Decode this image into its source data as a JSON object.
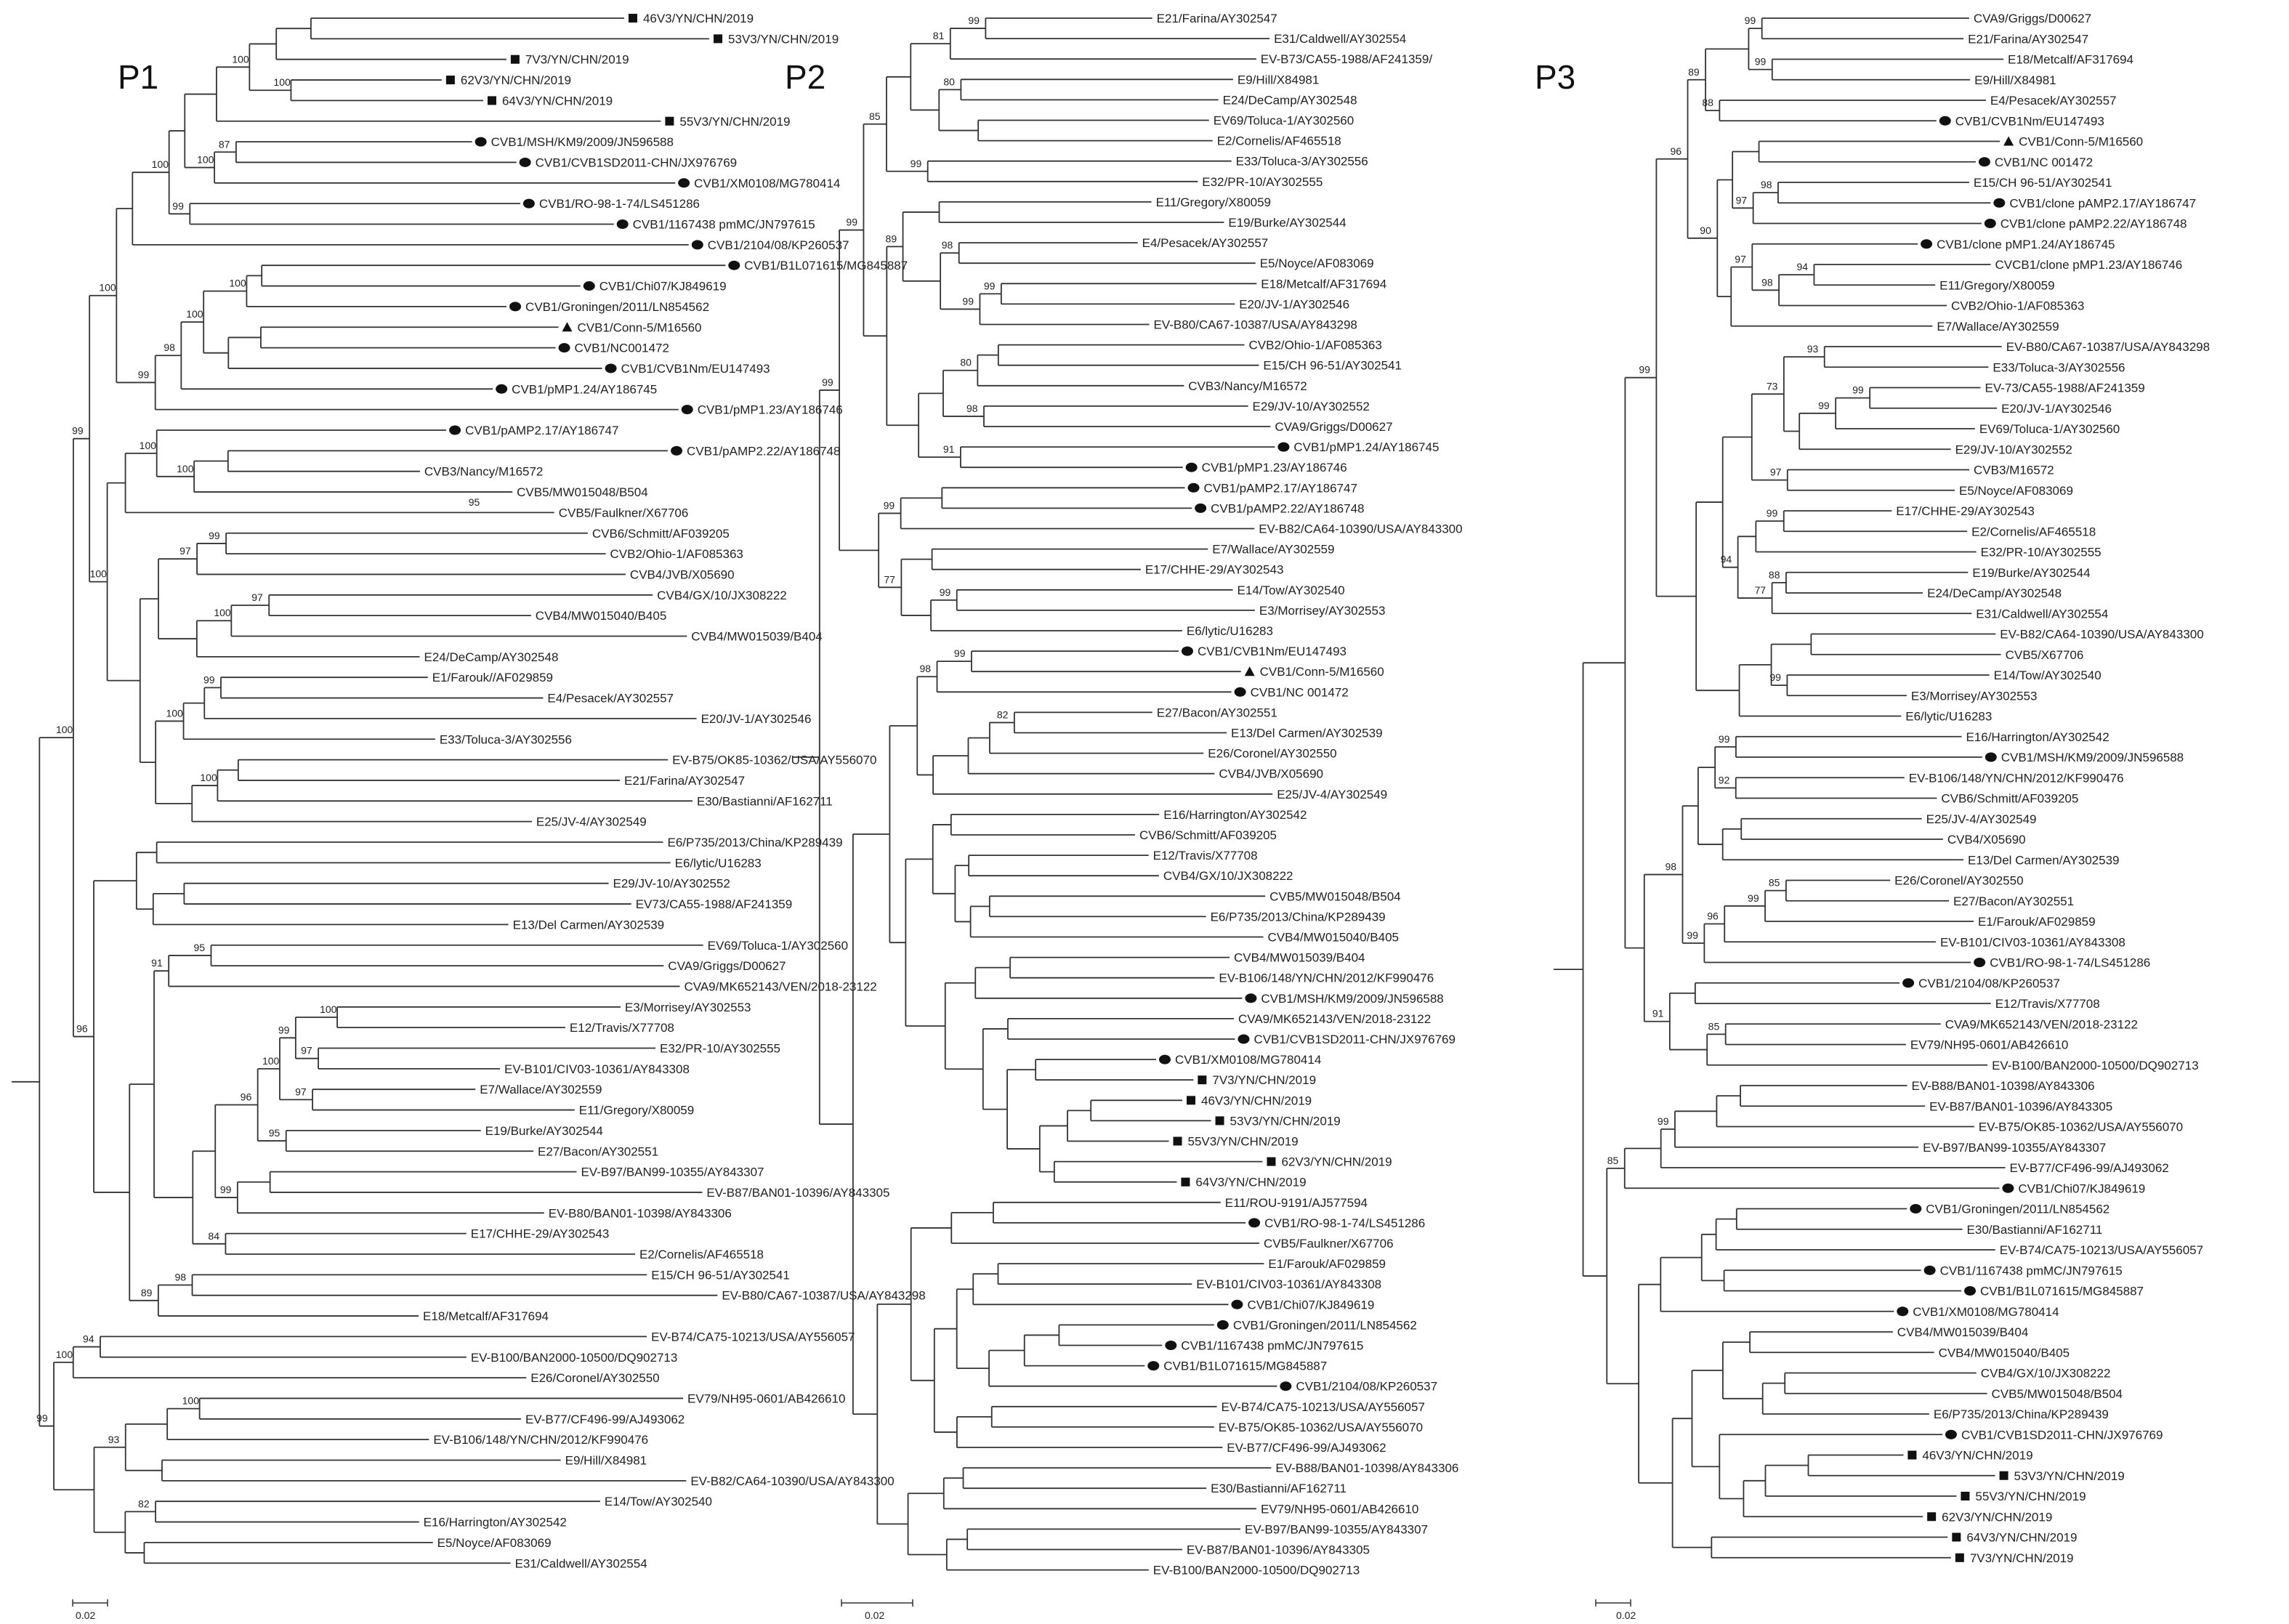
{
  "figure": {
    "marker_colors": {
      "line": "#333333",
      "marker": "#111111",
      "text": "#222222"
    }
  },
  "panels": [
    {
      "title": "P1",
      "scale_label": "0.02",
      "leaves": [
        {
          "label": "46V3/YN/CHN/2019",
          "marker": "square"
        },
        {
          "label": "53V3/YN/CHN/2019",
          "marker": "square"
        },
        {
          "label": "7V3/YN/CHN/2019",
          "marker": "square"
        },
        {
          "label": "62V3/YN/CHN/2019",
          "marker": "square"
        },
        {
          "label": "64V3/YN/CHN/2019",
          "marker": "square"
        },
        {
          "label": "55V3/YN/CHN/2019",
          "marker": "square"
        },
        {
          "label": "CVB1/MSH/KM9/2009/JN596588",
          "marker": "circle"
        },
        {
          "label": "CVB1/CVB1SD2011-CHN/JX976769",
          "marker": "circle"
        },
        {
          "label": "CVB1/XM0108/MG780414",
          "marker": "circle"
        },
        {
          "label": "CVB1/RO-98-1-74/LS451286",
          "marker": "circle"
        },
        {
          "label": "CVB1/1167438 pmMC/JN797615",
          "marker": "circle"
        },
        {
          "label": "CVB1/2104/08/KP260537",
          "marker": "circle"
        },
        {
          "label": "CVB1/B1L071615/MG845887",
          "marker": "circle"
        },
        {
          "label": "CVB1/Chi07/KJ849619",
          "marker": "circle"
        },
        {
          "label": "CVB1/Groningen/2011/LN854562",
          "marker": "circle"
        },
        {
          "label": "CVB1/Conn-5/M16560",
          "marker": "triangle"
        },
        {
          "label": "CVB1/NC001472",
          "marker": "circle"
        },
        {
          "label": "CVB1/CVB1Nm/EU147493",
          "marker": "circle"
        },
        {
          "label": "CVB1/pMP1.24/AY186745",
          "marker": "circle"
        },
        {
          "label": "CVB1/pMP1.23/AY186746",
          "marker": "circle"
        },
        {
          "label": "CVB1/pAMP2.17/AY186747",
          "marker": "circle"
        },
        {
          "label": "CVB1/pAMP2.22/AY186748",
          "marker": "circle"
        },
        {
          "label": "CVB3/Nancy/M16572"
        },
        {
          "label": "CVB5/MW015048/B504"
        },
        {
          "label": "CVB5/Faulkner/X67706"
        },
        {
          "label": "CVB6/Schmitt/AF039205"
        },
        {
          "label": "CVB2/Ohio-1/AF085363"
        },
        {
          "label": "CVB4/JVB/X05690"
        },
        {
          "label": "CVB4/GX/10/JX308222"
        },
        {
          "label": "CVB4/MW015040/B405"
        },
        {
          "label": "CVB4/MW015039/B404"
        },
        {
          "label": "E24/DeCamp/AY302548"
        },
        {
          "label": "E1/Farouk//AF029859"
        },
        {
          "label": "E4/Pesacek/AY302557"
        },
        {
          "label": "E20/JV-1/AY302546"
        },
        {
          "label": "E33/Toluca-3/AY302556"
        },
        {
          "label": "EV-B75/OK85-10362/USA/AY556070"
        },
        {
          "label": "E21/Farina/AY302547"
        },
        {
          "label": "E30/Bastianni/AF162711"
        },
        {
          "label": "E25/JV-4/AY302549"
        },
        {
          "label": "E6/P735/2013/China/KP289439"
        },
        {
          "label": "E6/lytic/U16283"
        },
        {
          "label": "E29/JV-10/AY302552"
        },
        {
          "label": "EV73/CA55-1988/AF241359"
        },
        {
          "label": "E13/Del Carmen/AY302539"
        },
        {
          "label": "EV69/Toluca-1/AY302560"
        },
        {
          "label": "CVA9/Griggs/D00627"
        },
        {
          "label": "CVA9/MK652143/VEN/2018-23122"
        },
        {
          "label": "E3/Morrisey/AY302553"
        },
        {
          "label": "E12/Travis/X77708"
        },
        {
          "label": "E32/PR-10/AY302555"
        },
        {
          "label": "EV-B101/CIV03-10361/AY843308"
        },
        {
          "label": "E7/Wallace/AY302559"
        },
        {
          "label": "E11/Gregory/X80059"
        },
        {
          "label": "E19/Burke/AY302544"
        },
        {
          "label": "E27/Bacon/AY302551"
        },
        {
          "label": "EV-B97/BAN99-10355/AY843307"
        },
        {
          "label": "EV-B87/BAN01-10396/AY843305"
        },
        {
          "label": "EV-B80/BAN01-10398/AY843306"
        },
        {
          "label": "E17/CHHE-29/AY302543"
        },
        {
          "label": "E2/Cornelis/AF465518"
        },
        {
          "label": "E15/CH 96-51/AY302541"
        },
        {
          "label": "EV-B80/CA67-10387/USA/AY843298"
        },
        {
          "label": "E18/Metcalf/AF317694"
        },
        {
          "label": "EV-B74/CA75-10213/USA/AY556057"
        },
        {
          "label": "EV-B100/BAN2000-10500/DQ902713"
        },
        {
          "label": "E26/Coronel/AY302550"
        },
        {
          "label": "EV79/NH95-0601/AB426610"
        },
        {
          "label": "EV-B77/CF496-99/AJ493062"
        },
        {
          "label": "EV-B106/148/YN/CHN/2012/KF990476"
        },
        {
          "label": "E9/Hill/X84981"
        },
        {
          "label": "EV-B82/CA64-10390/USA/AY843300"
        },
        {
          "label": "E14/Tow/AY302540"
        },
        {
          "label": "E16/Harrington/AY302542"
        },
        {
          "label": "E5/Noyce/AF083069"
        },
        {
          "label": "E31/Caldwell/AY302554"
        }
      ],
      "bootstrap": [
        "100",
        "100",
        "87",
        "100",
        "99",
        "100",
        "100",
        "100",
        "98",
        "99",
        "100",
        "100",
        "100",
        "99",
        "97",
        "97",
        "100",
        "99",
        "100",
        "100",
        "100",
        "99",
        "95",
        "91",
        "100",
        "97",
        "99",
        "97",
        "100",
        "95",
        "96",
        "99",
        "84",
        "98",
        "89",
        "96",
        "100",
        "94",
        "100",
        "100",
        "93",
        "82",
        "99",
        "95"
      ]
    },
    {
      "title": "P2",
      "scale_label": "0.02",
      "leaves": [
        {
          "label": "E21/Farina/AY302547"
        },
        {
          "label": "E31/Caldwell/AY302554"
        },
        {
          "label": "EV-B73/CA55-1988/AF241359/"
        },
        {
          "label": "E9/Hill/X84981"
        },
        {
          "label": "E24/DeCamp/AY302548"
        },
        {
          "label": "EV69/Toluca-1/AY302560"
        },
        {
          "label": "E2/Cornelis/AF465518"
        },
        {
          "label": "E33/Toluca-3/AY302556"
        },
        {
          "label": "E32/PR-10/AY302555"
        },
        {
          "label": "E11/Gregory/X80059"
        },
        {
          "label": "E19/Burke/AY302544"
        },
        {
          "label": "E4/Pesacek/AY302557"
        },
        {
          "label": "E5/Noyce/AF083069"
        },
        {
          "label": "E18/Metcalf/AF317694"
        },
        {
          "label": "E20/JV-1/AY302546"
        },
        {
          "label": "EV-B80/CA67-10387/USA/AY843298"
        },
        {
          "label": "CVB2/Ohio-1/AF085363"
        },
        {
          "label": "E15/CH 96-51/AY302541"
        },
        {
          "label": "CVB3/Nancy/M16572"
        },
        {
          "label": "E29/JV-10/AY302552"
        },
        {
          "label": "CVA9/Griggs/D00627"
        },
        {
          "label": "CVB1/pMP1.24/AY186745",
          "marker": "circle"
        },
        {
          "label": "CVB1/pMP1.23/AY186746",
          "marker": "circle"
        },
        {
          "label": "CVB1/pAMP2.17/AY186747",
          "marker": "circle"
        },
        {
          "label": "CVB1/pAMP2.22/AY186748",
          "marker": "circle"
        },
        {
          "label": "EV-B82/CA64-10390/USA/AY843300"
        },
        {
          "label": "E7/Wallace/AY302559"
        },
        {
          "label": "E17/CHHE-29/AY302543"
        },
        {
          "label": "E14/Tow/AY302540"
        },
        {
          "label": "E3/Morrisey/AY302553"
        },
        {
          "label": "E6/lytic/U16283"
        },
        {
          "label": "CVB1/CVB1Nm/EU147493",
          "marker": "circle"
        },
        {
          "label": "CVB1/Conn-5/M16560",
          "marker": "triangle"
        },
        {
          "label": "CVB1/NC 001472",
          "marker": "circle"
        },
        {
          "label": "E27/Bacon/AY302551"
        },
        {
          "label": "E13/Del Carmen/AY302539"
        },
        {
          "label": "E26/Coronel/AY302550"
        },
        {
          "label": "CVB4/JVB/X05690"
        },
        {
          "label": "E25/JV-4/AY302549"
        },
        {
          "label": "E16/Harrington/AY302542"
        },
        {
          "label": "CVB6/Schmitt/AF039205"
        },
        {
          "label": "E12/Travis/X77708"
        },
        {
          "label": "CVB4/GX/10/JX308222"
        },
        {
          "label": "CVB5/MW015048/B504"
        },
        {
          "label": "E6/P735/2013/China/KP289439"
        },
        {
          "label": "CVB4/MW015040/B405"
        },
        {
          "label": "CVB4/MW015039/B404"
        },
        {
          "label": "EV-B106/148/YN/CHN/2012/KF990476"
        },
        {
          "label": "CVB1/MSH/KM9/2009/JN596588",
          "marker": "circle"
        },
        {
          "label": "CVA9/MK652143/VEN/2018-23122"
        },
        {
          "label": "CVB1/CVB1SD2011-CHN/JX976769",
          "marker": "circle"
        },
        {
          "label": "CVB1/XM0108/MG780414",
          "marker": "circle"
        },
        {
          "label": "7V3/YN/CHN/2019",
          "marker": "square"
        },
        {
          "label": "46V3/YN/CHN/2019",
          "marker": "square"
        },
        {
          "label": "53V3/YN/CHN/2019",
          "marker": "square"
        },
        {
          "label": "55V3/YN/CHN/2019",
          "marker": "square"
        },
        {
          "label": "62V3/YN/CHN/2019",
          "marker": "square"
        },
        {
          "label": "64V3/YN/CHN/2019",
          "marker": "square"
        },
        {
          "label": "E11/ROU-9191/AJ577594"
        },
        {
          "label": "CVB1/RO-98-1-74/LS451286",
          "marker": "circle"
        },
        {
          "label": "CVB5/Faulkner/X67706"
        },
        {
          "label": "E1/Farouk/AF029859"
        },
        {
          "label": "EV-B101/CIV03-10361/AY843308"
        },
        {
          "label": "CVB1/Chi07/KJ849619",
          "marker": "circle"
        },
        {
          "label": "CVB1/Groningen/2011/LN854562",
          "marker": "circle"
        },
        {
          "label": "CVB1/1167438 pmMC/JN797615",
          "marker": "circle"
        },
        {
          "label": "CVB1/B1L071615/MG845887",
          "marker": "circle"
        },
        {
          "label": "CVB1/2104/08/KP260537",
          "marker": "circle"
        },
        {
          "label": "EV-B74/CA75-10213/USA/AY556057"
        },
        {
          "label": "EV-B75/OK85-10362/USA/AY556070"
        },
        {
          "label": "EV-B77/CF496-99/AJ493062"
        },
        {
          "label": "EV-B88/BAN01-10398/AY843306"
        },
        {
          "label": "E30/Bastianni/AF162711"
        },
        {
          "label": "EV79/NH95-0601/AB426610"
        },
        {
          "label": "EV-B97/BAN99-10355/AY843307"
        },
        {
          "label": "EV-B87/BAN01-10396/AY843305"
        },
        {
          "label": "EV-B100/BAN2000-10500/DQ902713"
        }
      ],
      "bootstrap": [
        "99",
        "81",
        "80",
        "99",
        "85",
        "98",
        "99",
        "99",
        "89",
        "80",
        "98",
        "91",
        "99",
        "99",
        "99",
        "77",
        "99",
        "99",
        "98",
        "82"
      ]
    },
    {
      "title": "P3",
      "scale_label": "0.02",
      "leaves": [
        {
          "label": "CVA9/Griggs/D00627"
        },
        {
          "label": "E21/Farina/AY302547"
        },
        {
          "label": "E18/Metcalf/AF317694"
        },
        {
          "label": "E9/Hill/X84981"
        },
        {
          "label": "E4/Pesacek/AY302557"
        },
        {
          "label": "CVB1/CVB1Nm/EU147493",
          "marker": "circle"
        },
        {
          "label": "CVB1/Conn-5/M16560",
          "marker": "triangle"
        },
        {
          "label": "CVB1/NC 001472",
          "marker": "circle"
        },
        {
          "label": "E15/CH 96-51/AY302541"
        },
        {
          "label": "CVB1/clone pAMP2.17/AY186747",
          "marker": "circle"
        },
        {
          "label": "CVB1/clone pAMP2.22/AY186748",
          "marker": "circle"
        },
        {
          "label": "CVB1/clone pMP1.24/AY186745",
          "marker": "circle"
        },
        {
          "label": "CVCB1/clone pMP1.23/AY186746"
        },
        {
          "label": "E11/Gregory/X80059"
        },
        {
          "label": "CVB2/Ohio-1/AF085363"
        },
        {
          "label": "E7/Wallace/AY302559"
        },
        {
          "label": "EV-B80/CA67-10387/USA/AY843298"
        },
        {
          "label": "E33/Toluca-3/AY302556"
        },
        {
          "label": "EV-73/CA55-1988/AF241359"
        },
        {
          "label": "E20/JV-1/AY302546"
        },
        {
          "label": "EV69/Toluca-1/AY302560"
        },
        {
          "label": "E29/JV-10/AY302552"
        },
        {
          "label": "CVB3/M16572"
        },
        {
          "label": "E5/Noyce/AF083069"
        },
        {
          "label": "E17/CHHE-29/AY302543"
        },
        {
          "label": "E2/Cornelis/AF465518"
        },
        {
          "label": "E32/PR-10/AY302555"
        },
        {
          "label": "E19/Burke/AY302544"
        },
        {
          "label": "E24/DeCamp/AY302548"
        },
        {
          "label": "E31/Caldwell/AY302554"
        },
        {
          "label": "EV-B82/CA64-10390/USA/AY843300"
        },
        {
          "label": "CVB5/X67706"
        },
        {
          "label": "E14/Tow/AY302540"
        },
        {
          "label": "E3/Morrisey/AY302553"
        },
        {
          "label": "E6/lytic/U16283"
        },
        {
          "label": "E16/Harrington/AY302542"
        },
        {
          "label": "CVB1/MSH/KM9/2009/JN596588",
          "marker": "circle"
        },
        {
          "label": "EV-B106/148/YN/CHN/2012/KF990476"
        },
        {
          "label": "CVB6/Schmitt/AF039205"
        },
        {
          "label": "E25/JV-4/AY302549"
        },
        {
          "label": "CVB4/X05690"
        },
        {
          "label": "E13/Del Carmen/AY302539"
        },
        {
          "label": "E26/Coronel/AY302550"
        },
        {
          "label": "E27/Bacon/AY302551"
        },
        {
          "label": "E1/Farouk/AF029859"
        },
        {
          "label": "EV-B101/CIV03-10361/AY843308"
        },
        {
          "label": "CVB1/RO-98-1-74/LS451286",
          "marker": "circle"
        },
        {
          "label": "CVB1/2104/08/KP260537",
          "marker": "circle"
        },
        {
          "label": "E12/Travis/X77708"
        },
        {
          "label": "CVA9/MK652143/VEN/2018-23122"
        },
        {
          "label": "EV79/NH95-0601/AB426610"
        },
        {
          "label": "EV-B100/BAN2000-10500/DQ902713"
        },
        {
          "label": "EV-B88/BAN01-10398/AY843306"
        },
        {
          "label": "EV-B87/BAN01-10396/AY843305"
        },
        {
          "label": "EV-B75/OK85-10362/USA/AY556070"
        },
        {
          "label": "EV-B97/BAN99-10355/AY843307"
        },
        {
          "label": "EV-B77/CF496-99/AJ493062"
        },
        {
          "label": "CVB1/Chi07/KJ849619",
          "marker": "circle"
        },
        {
          "label": "CVB1/Groningen/2011/LN854562",
          "marker": "circle"
        },
        {
          "label": "E30/Bastianni/AF162711"
        },
        {
          "label": "EV-B74/CA75-10213/USA/AY556057"
        },
        {
          "label": "CVB1/1167438 pmMC/JN797615",
          "marker": "circle"
        },
        {
          "label": "CVB1/B1L071615/MG845887",
          "marker": "circle"
        },
        {
          "label": "CVB1/XM0108/MG780414",
          "marker": "circle"
        },
        {
          "label": "CVB4/MW015039/B404"
        },
        {
          "label": "CVB4/MW015040/B405"
        },
        {
          "label": "CVB4/GX/10/JX308222"
        },
        {
          "label": "CVB5/MW015048/B504"
        },
        {
          "label": "E6/P735/2013/China/KP289439"
        },
        {
          "label": "CVB1/CVB1SD2011-CHN/JX976769",
          "marker": "circle"
        },
        {
          "label": "46V3/YN/CHN/2019",
          "marker": "square"
        },
        {
          "label": "53V3/YN/CHN/2019",
          "marker": "square"
        },
        {
          "label": "55V3/YN/CHN/2019",
          "marker": "square"
        },
        {
          "label": "62V3/YN/CHN/2019",
          "marker": "square"
        },
        {
          "label": "64V3/YN/CHN/2019",
          "marker": "square"
        },
        {
          "label": "7V3/YN/CHN/2019",
          "marker": "square"
        }
      ],
      "bootstrap": [
        "99",
        "99",
        "88",
        "89",
        "98",
        "97",
        "94",
        "98",
        "97",
        "90",
        "96",
        "93",
        "99",
        "99",
        "73",
        "97",
        "99",
        "88",
        "77",
        "94",
        "99",
        "99",
        "99",
        "92",
        "85",
        "99",
        "96",
        "99",
        "98",
        "85",
        "91",
        "99",
        "85"
      ]
    }
  ]
}
